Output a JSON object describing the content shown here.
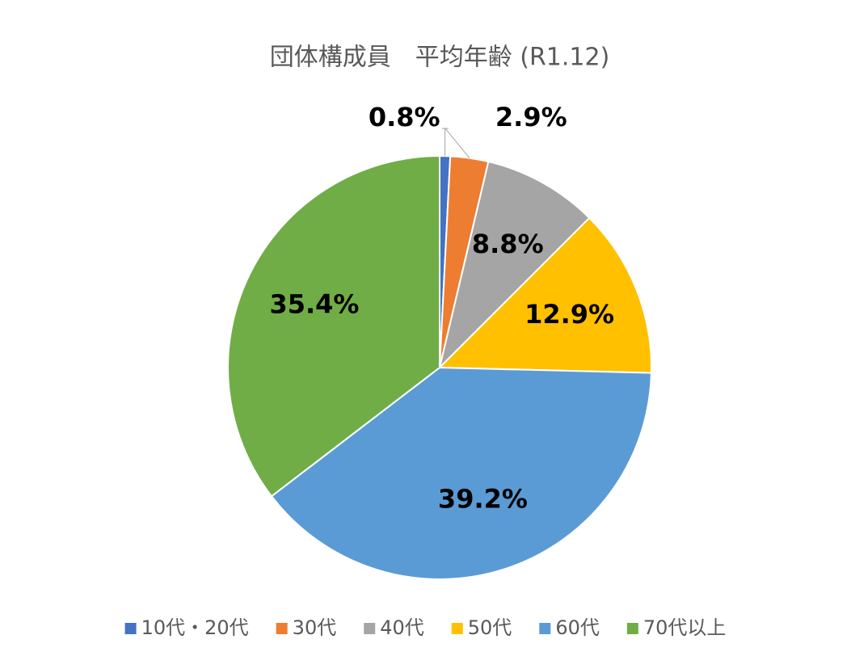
{
  "chart_data": {
    "type": "pie",
    "title": "団体構成員　平均年齢 (R1.12)",
    "categories": [
      "10代・20代",
      "30代",
      "40代",
      "50代",
      "60代",
      "70代以上"
    ],
    "values": [
      0.8,
      2.9,
      8.8,
      12.9,
      39.2,
      35.4
    ],
    "value_labels": [
      "0.8%",
      "2.9%",
      "8.8%",
      "12.9%",
      "39.2%",
      "35.4%"
    ],
    "colors": [
      "#4472c4",
      "#ed7d31",
      "#a5a5a5",
      "#ffc000",
      "#5b9bd5",
      "#70ad47"
    ],
    "legend": "bottom"
  }
}
